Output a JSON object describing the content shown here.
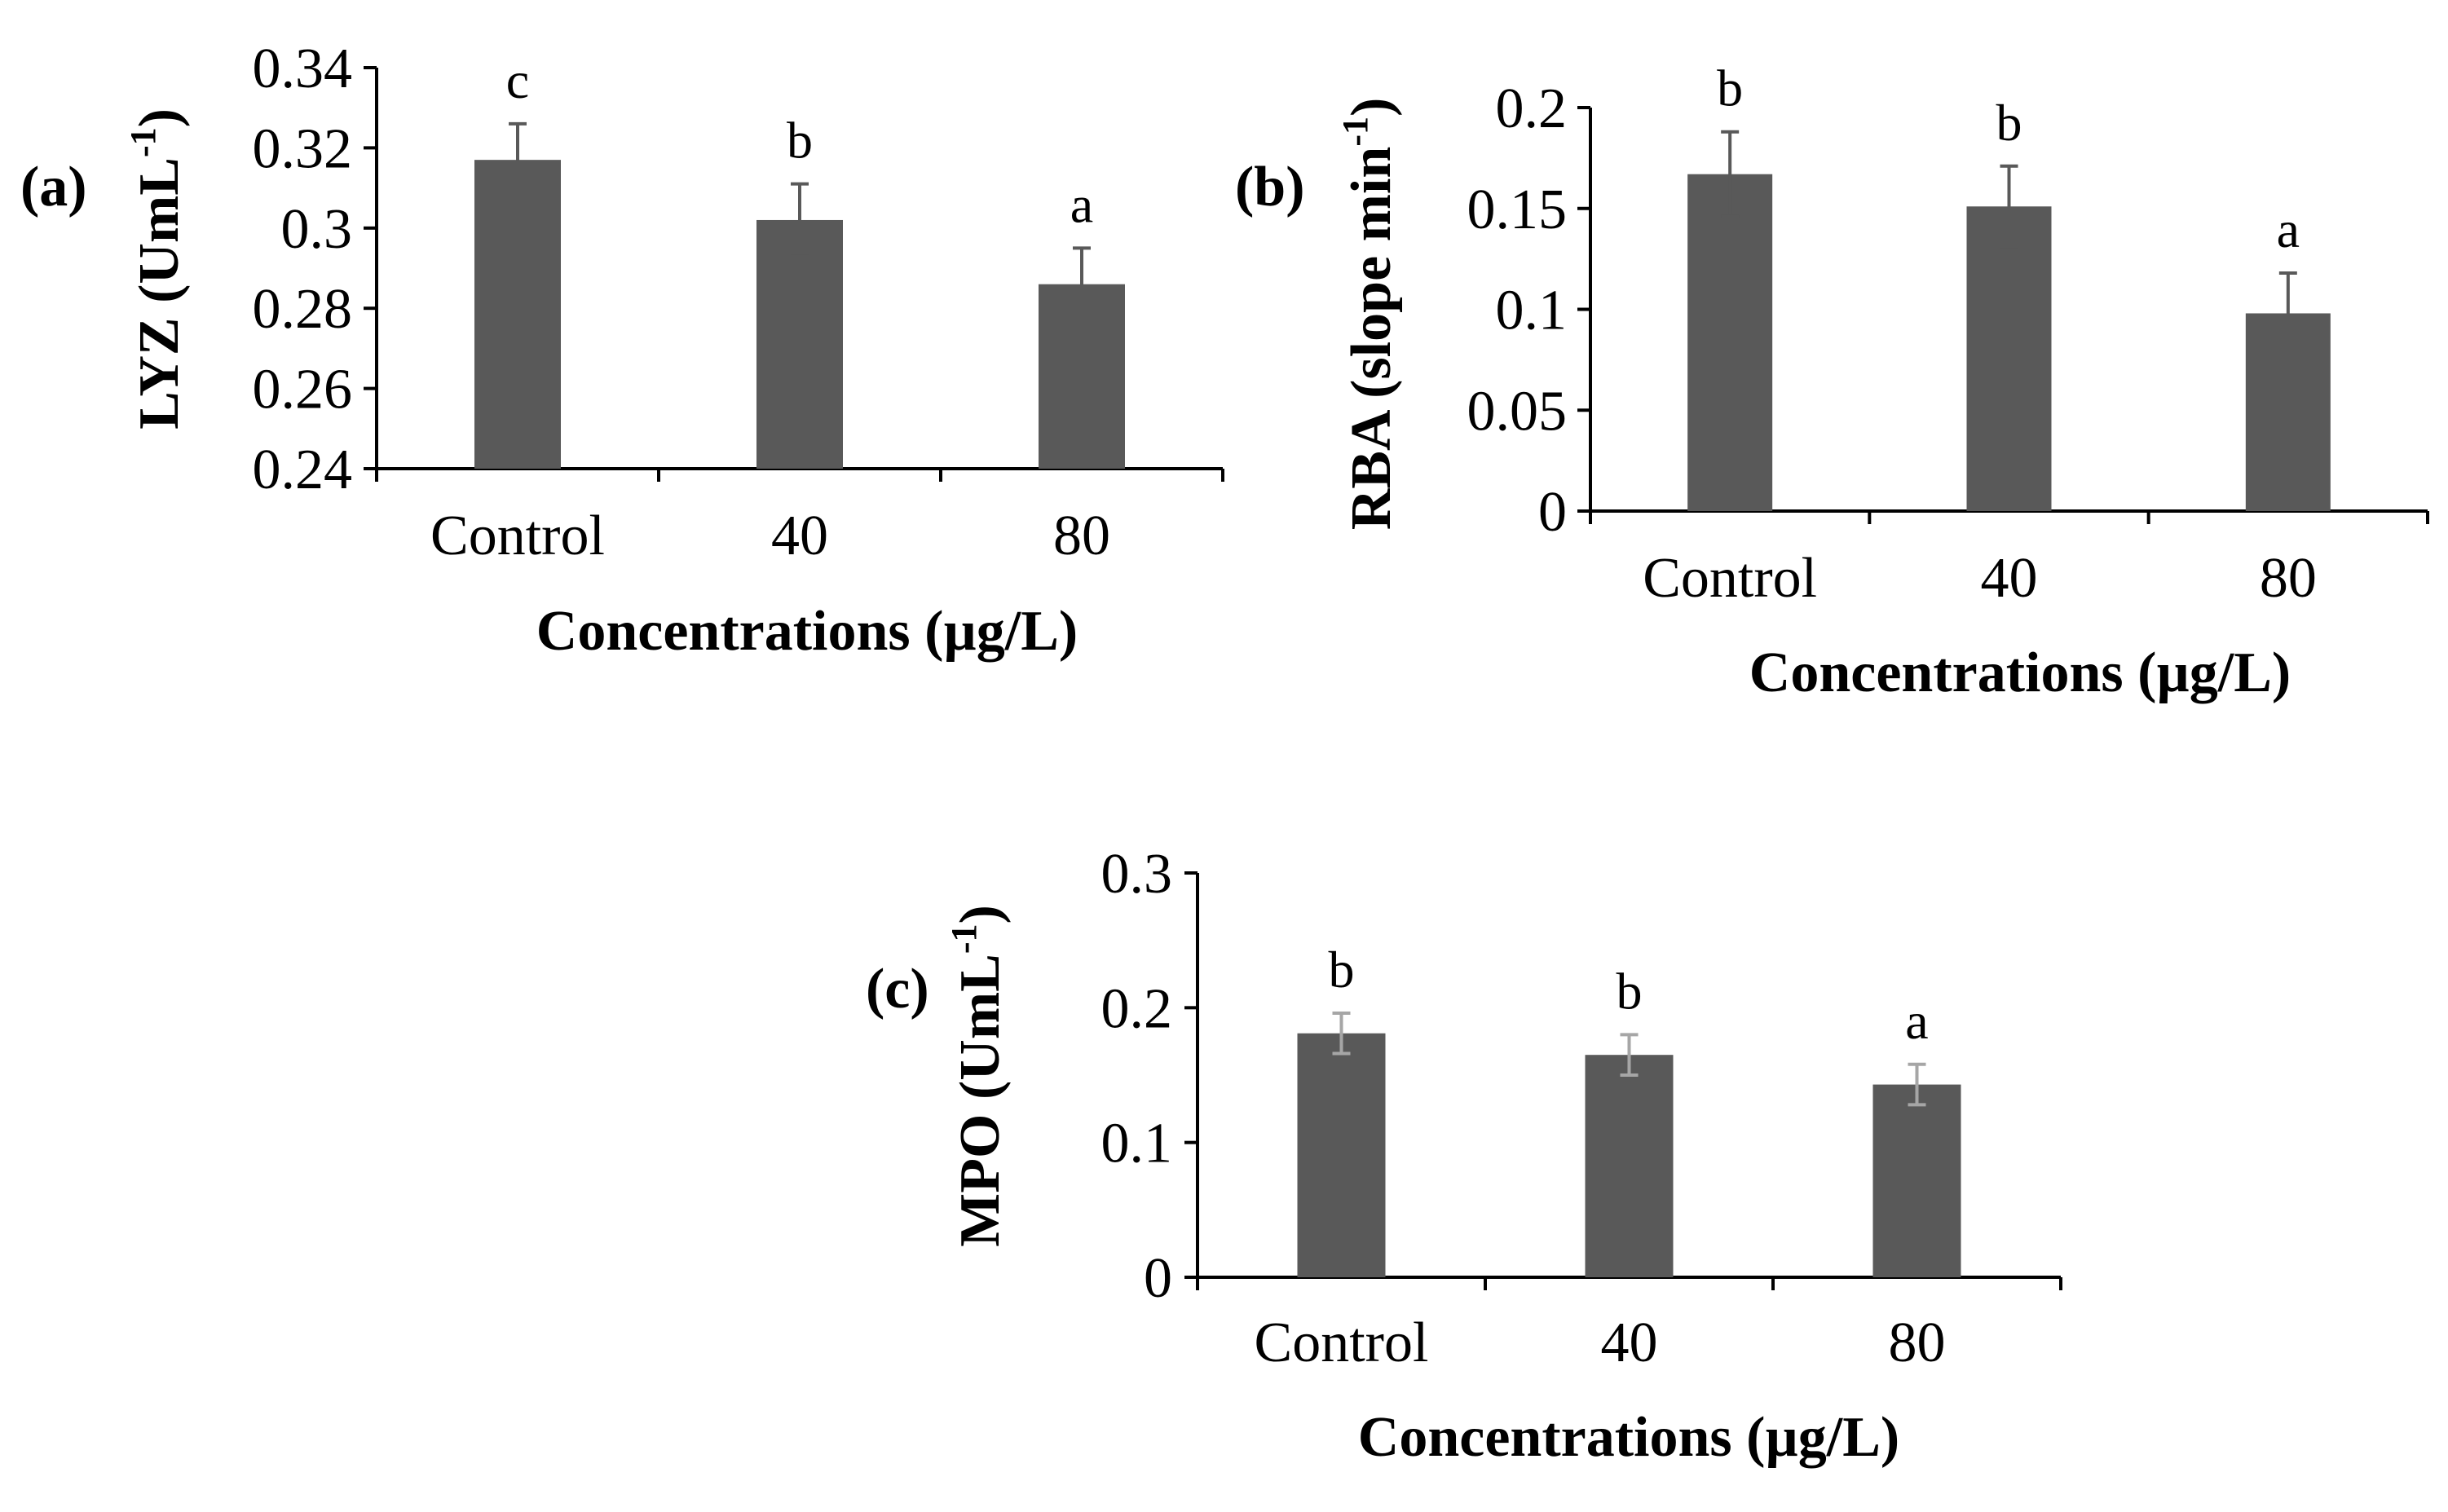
{
  "figure": {
    "x_axis_title": "Concentrations (µg/L)"
  },
  "chart_data": [
    {
      "type": "bar",
      "panel_label": "(a)",
      "categories": [
        "Control",
        "40",
        "80"
      ],
      "values": [
        0.317,
        0.302,
        0.286
      ],
      "errors": [
        0.009,
        0.009,
        0.009
      ],
      "significance": [
        "c",
        "b",
        "a"
      ],
      "ylabel": "LYZ (UmL",
      "ylabel_sup": "-1",
      "ylabel_end": ")",
      "xlabel": "Concentrations (µg/L)",
      "ylim": [
        0.24,
        0.34
      ],
      "yticks": [
        0.24,
        0.26,
        0.28,
        0.3,
        0.32,
        0.34
      ],
      "ytick_labels": [
        "0.24",
        "0.26",
        "0.28",
        "0.3",
        "0.32",
        "0.34"
      ],
      "bar_color": "#595959",
      "error_color": "#595959"
    },
    {
      "type": "bar",
      "panel_label": "(b)",
      "categories": [
        "Control",
        "40",
        "80"
      ],
      "values": [
        0.167,
        0.151,
        0.098
      ],
      "errors": [
        0.021,
        0.02,
        0.02
      ],
      "significance": [
        "b",
        "b",
        "a"
      ],
      "ylabel": "RBA (slope min",
      "ylabel_sup": "-1",
      "ylabel_end": ")",
      "xlabel": "Concentrations (µg/L)",
      "ylim": [
        0,
        0.2
      ],
      "yticks": [
        0,
        0.05,
        0.1,
        0.15,
        0.2
      ],
      "ytick_labels": [
        "0",
        "0.05",
        "0.1",
        "0.15",
        "0.2"
      ],
      "bar_color": "#595959",
      "error_color": "#595959"
    },
    {
      "type": "bar",
      "panel_label": "(c)",
      "categories": [
        "Control",
        "40",
        "80"
      ],
      "values": [
        0.181,
        0.165,
        0.143
      ],
      "errors": [
        0.015,
        0.015,
        0.015
      ],
      "significance": [
        "b",
        "b",
        "a"
      ],
      "ylabel": "MPO (UmL",
      "ylabel_sup": "-1",
      "ylabel_end": ")",
      "xlabel": "Concentrations (µg/L)",
      "ylim": [
        0,
        0.3
      ],
      "yticks": [
        0,
        0.1,
        0.2,
        0.3
      ],
      "ytick_labels": [
        "0",
        "0.1",
        "0.2",
        "0.3"
      ],
      "bar_color": "#595959",
      "error_color": "#a6a6a6"
    }
  ]
}
